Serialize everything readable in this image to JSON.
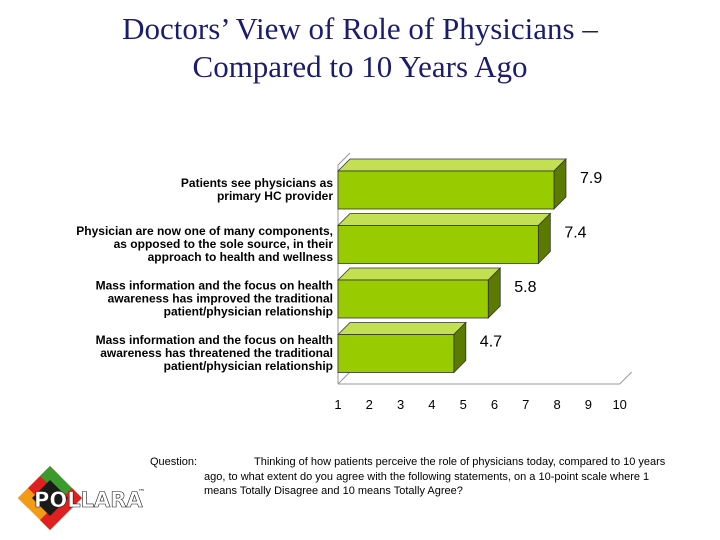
{
  "title": {
    "line1": "Doctors’ View of Role of Physicians –",
    "line2": "Compared to 10 Years Ago"
  },
  "chart_data": {
    "type": "bar",
    "orientation": "horizontal",
    "categories": [
      [
        "Patients see physicians as",
        "primary HC provider"
      ],
      [
        "Physician are now one of many components,",
        "as opposed to the sole source, in their",
        "approach to health and wellness"
      ],
      [
        "Mass information and the focus on health",
        "awareness has improved the traditional",
        "patient/physician relationship"
      ],
      [
        "Mass information and the focus on health",
        "awareness has threatened the traditional",
        "patient/physician relationship"
      ]
    ],
    "values": [
      7.9,
      7.4,
      5.8,
      4.7
    ],
    "value_labels": [
      "7.9",
      "7.4",
      "5.8",
      "4.7"
    ],
    "xlim": [
      1,
      10
    ],
    "xticks": [
      "1",
      "2",
      "3",
      "4",
      "5",
      "6",
      "7",
      "8",
      "9",
      "10"
    ],
    "grid": false,
    "style": "3d",
    "colors": {
      "bar_face": "#99cc00",
      "bar_top": "#c2e052",
      "bar_side": "#5a7a00",
      "edge": "#333333"
    }
  },
  "question": {
    "prefix": "Question:",
    "text": "Thinking of how patients perceive the role of physicians today, compared to 10 years ago, to what extent do you agree with the following statements, on a 10-point scale where 1 means Totally Disagree and 10 means Totally Agree?"
  },
  "logo": {
    "text": "POLLARA",
    "trademark": "™",
    "colors": {
      "diamond_red": "#e01f1f",
      "diamond_green": "#3a9a2c",
      "diamond_orange": "#f39a16",
      "center": "#1a1a1a"
    }
  }
}
